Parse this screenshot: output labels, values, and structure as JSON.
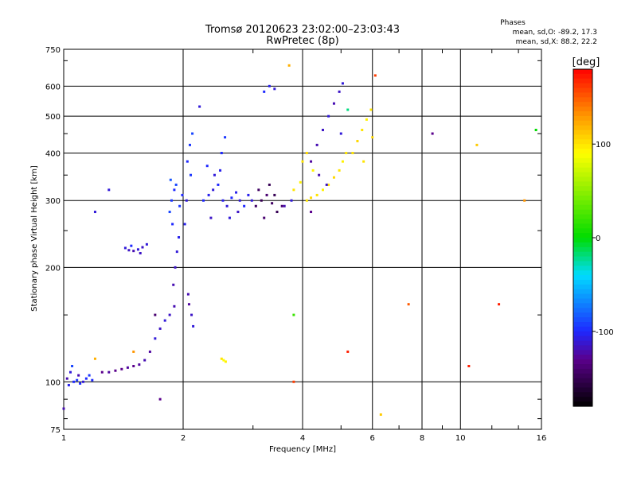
{
  "chart_data": {
    "type": "scatter",
    "title": "Tromsø 20120623 23:02:00–23:03:43",
    "subtitle": "RwPretec (8p)",
    "xlabel": "Frequency [MHz]",
    "ylabel": "Stationary phase Virtual Height [km]",
    "x_scale": "log",
    "y_scale": "log",
    "xlim": [
      1,
      16
    ],
    "ylim": [
      75,
      750
    ],
    "x_ticks": [
      1,
      2,
      4,
      6,
      8,
      10,
      16
    ],
    "x_tick_labels": [
      "1",
      "2",
      "4",
      "6",
      "8",
      "10",
      "16"
    ],
    "y_ticks": [
      75,
      100,
      200,
      300,
      400,
      500,
      600,
      750
    ],
    "y_tick_labels": [
      "75",
      "100",
      "200",
      "300",
      "400",
      "500",
      "600",
      "750"
    ],
    "grid": true,
    "stats": {
      "heading": "Phases",
      "line_o": "mean, sd,O: -89.2, 17.3",
      "line_x": "mean, sd,X:  88.2, 22.2"
    },
    "colorbar": {
      "label": "[deg]",
      "range": [
        -180,
        180
      ],
      "ticks": [
        100,
        0,
        -100
      ],
      "tick_labels": [
        "100",
        "0",
        "-100"
      ]
    },
    "series": [
      {
        "points": [
          [
            1.02,
            102,
            -120
          ],
          [
            1.04,
            106,
            -110
          ],
          [
            1.06,
            100,
            -100
          ],
          [
            1.08,
            101,
            -95
          ],
          [
            1.1,
            99,
            -100
          ],
          [
            1.12,
            100,
            -110
          ],
          [
            1.14,
            102,
            -100
          ],
          [
            1.16,
            104,
            -95
          ],
          [
            1.18,
            101,
            -100
          ],
          [
            1.05,
            110,
            -90
          ],
          [
            1.03,
            98,
            -105
          ],
          [
            1.09,
            104,
            -120
          ],
          [
            1.25,
            106,
            -130
          ],
          [
            1.3,
            106,
            -125
          ],
          [
            1.35,
            107,
            -130
          ],
          [
            1.4,
            108,
            -130
          ],
          [
            1.45,
            109,
            -125
          ],
          [
            1.5,
            110,
            -130
          ],
          [
            1.55,
            111,
            -125
          ],
          [
            1.6,
            114,
            -120
          ],
          [
            1.65,
            120,
            -125
          ],
          [
            1.7,
            130,
            -110
          ],
          [
            1.75,
            138,
            -115
          ],
          [
            1.8,
            145,
            -110
          ],
          [
            1.85,
            150,
            -115
          ],
          [
            1.9,
            158,
            -120
          ],
          [
            1.43,
            225,
            -110
          ],
          [
            1.46,
            222,
            -115
          ],
          [
            1.5,
            221,
            -120
          ],
          [
            1.54,
            223,
            -110
          ],
          [
            1.58,
            226,
            -115
          ],
          [
            1.62,
            230,
            -110
          ],
          [
            1.48,
            228,
            -100
          ],
          [
            1.56,
            218,
            -115
          ],
          [
            1.85,
            280,
            -90
          ],
          [
            1.87,
            300,
            -95
          ],
          [
            1.9,
            320,
            -100
          ],
          [
            1.92,
            330,
            -90
          ],
          [
            1.88,
            260,
            -100
          ],
          [
            1.95,
            240,
            -105
          ],
          [
            1.93,
            220,
            -110
          ],
          [
            1.91,
            200,
            -115
          ],
          [
            1.89,
            180,
            -120
          ],
          [
            1.96,
            290,
            -95
          ],
          [
            1.99,
            310,
            -100
          ],
          [
            1.86,
            340,
            -85
          ],
          [
            2.05,
            380,
            -100
          ],
          [
            2.08,
            420,
            -95
          ],
          [
            2.02,
            260,
            -105
          ],
          [
            2.04,
            300,
            -110
          ],
          [
            2.06,
            170,
            -120
          ],
          [
            2.07,
            160,
            -125
          ],
          [
            2.1,
            150,
            -115
          ],
          [
            2.12,
            140,
            -110
          ],
          [
            2.09,
            350,
            -95
          ],
          [
            2.11,
            450,
            -90
          ],
          [
            2.25,
            300,
            -100
          ],
          [
            2.32,
            310,
            -105
          ],
          [
            2.38,
            320,
            -110
          ],
          [
            2.45,
            330,
            -100
          ],
          [
            2.52,
            300,
            -105
          ],
          [
            2.58,
            290,
            -110
          ],
          [
            2.65,
            305,
            -100
          ],
          [
            2.72,
            315,
            -105
          ],
          [
            2.78,
            300,
            -110
          ],
          [
            2.85,
            290,
            -100
          ],
          [
            2.92,
            310,
            -105
          ],
          [
            2.98,
            300,
            -110
          ],
          [
            2.5,
            400,
            -100
          ],
          [
            2.55,
            440,
            -95
          ],
          [
            2.48,
            360,
            -105
          ],
          [
            2.4,
            350,
            -110
          ],
          [
            2.3,
            370,
            -100
          ],
          [
            2.35,
            270,
            -115
          ],
          [
            2.62,
            270,
            -110
          ],
          [
            2.75,
            280,
            -115
          ],
          [
            3.05,
            290,
            -145
          ],
          [
            3.15,
            300,
            -150
          ],
          [
            3.25,
            310,
            -140
          ],
          [
            3.35,
            295,
            -145
          ],
          [
            3.45,
            280,
            -150
          ],
          [
            3.55,
            290,
            -140
          ],
          [
            3.1,
            320,
            -145
          ],
          [
            3.3,
            330,
            -150
          ],
          [
            3.2,
            270,
            -140
          ],
          [
            3.4,
            310,
            -150
          ],
          [
            3.6,
            290,
            -120
          ],
          [
            3.75,
            300,
            -110
          ],
          [
            3.4,
            590,
            -110
          ],
          [
            3.3,
            600,
            -105
          ],
          [
            3.2,
            580,
            -100
          ],
          [
            4.1,
            300,
            100
          ],
          [
            4.2,
            305,
            105
          ],
          [
            4.35,
            310,
            100
          ],
          [
            4.5,
            320,
            95
          ],
          [
            4.65,
            330,
            100
          ],
          [
            4.8,
            345,
            105
          ],
          [
            4.95,
            360,
            100
          ],
          [
            5.05,
            380,
            95
          ],
          [
            5.15,
            400,
            100
          ],
          [
            3.8,
            320,
            100
          ],
          [
            3.95,
            335,
            95
          ],
          [
            4.0,
            380,
            100
          ],
          [
            4.1,
            400,
            105
          ],
          [
            4.25,
            360,
            95
          ],
          [
            4.35,
            420,
            -120
          ],
          [
            4.5,
            460,
            -115
          ],
          [
            4.65,
            500,
            -110
          ],
          [
            4.8,
            540,
            -120
          ],
          [
            4.95,
            580,
            -115
          ],
          [
            5.05,
            610,
            -110
          ],
          [
            4.2,
            380,
            -125
          ],
          [
            4.4,
            350,
            -120
          ],
          [
            4.6,
            330,
            -115
          ],
          [
            5.0,
            450,
            -110
          ],
          [
            5.35,
            400,
            100
          ],
          [
            5.5,
            430,
            105
          ],
          [
            5.65,
            460,
            100
          ],
          [
            5.8,
            490,
            95
          ],
          [
            5.95,
            520,
            100
          ],
          [
            6.0,
            440,
            105
          ],
          [
            5.7,
            380,
            100
          ],
          [
            2.53,
            114,
            90
          ],
          [
            2.56,
            113,
            95
          ],
          [
            2.5,
            115,
            100
          ],
          [
            3.7,
            680,
            120
          ],
          [
            5.2,
            520,
            -20
          ],
          [
            6.1,
            640,
            160
          ],
          [
            6.3,
            82,
            110
          ],
          [
            8.5,
            450,
            -130
          ],
          [
            11.0,
            420,
            110
          ],
          [
            12.5,
            160,
            170
          ],
          [
            14.5,
            300,
            130
          ],
          [
            15.5,
            460,
            0
          ],
          [
            10.5,
            110,
            170
          ],
          [
            5.2,
            120,
            170
          ],
          [
            3.8,
            100,
            160
          ],
          [
            2.2,
            530,
            -110
          ],
          [
            1.7,
            150,
            -140
          ],
          [
            1.5,
            120,
            130
          ],
          [
            1.2,
            115,
            120
          ],
          [
            1.3,
            320,
            -110
          ],
          [
            1.2,
            280,
            -110
          ],
          [
            1.75,
            90,
            -130
          ],
          [
            1.0,
            85,
            -120
          ],
          [
            3.8,
            150,
            20
          ],
          [
            4.2,
            280,
            -130
          ],
          [
            7.4,
            160,
            150
          ]
        ]
      }
    ]
  }
}
